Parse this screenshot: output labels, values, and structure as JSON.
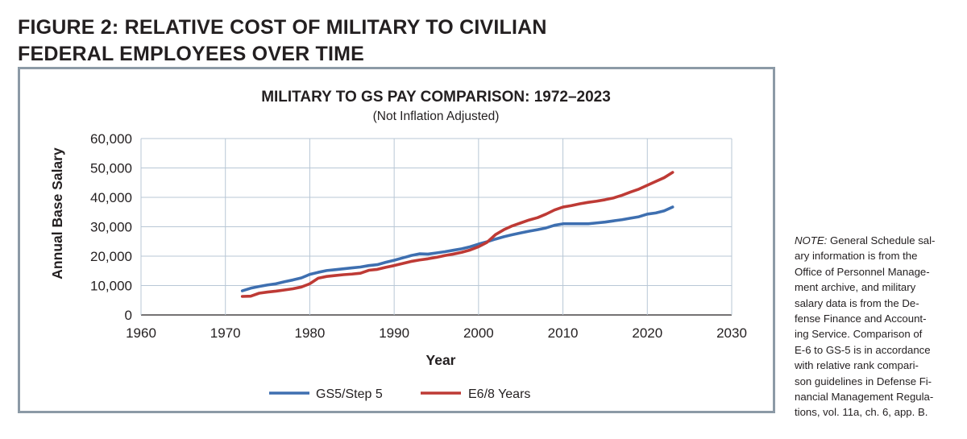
{
  "figure": {
    "title_lines": [
      "FIGURE 2: RELATIVE COST OF MILITARY TO CIVILIAN",
      "FEDERAL EMPLOYEES OVER TIME"
    ]
  },
  "note": {
    "label": "NOTE:",
    "lines": [
      " General Schedule sal-",
      "ary information is from the",
      "Office of Personnel Manage-",
      "ment archive, and military",
      "salary data is from the De-",
      "fense Finance and Account-",
      "ing Service. Comparison of",
      "E-6 to GS-5 is in accordance",
      "with relative rank compari-",
      "son guidelines in Defense Fi-",
      "nancial Management Regula-",
      "tions, vol. 11a, ch. 6, app. B."
    ]
  },
  "chart_data": {
    "type": "line",
    "title": "MILITARY TO GS PAY COMPARISON: 1972–2023",
    "subtitle": "(Not Inflation Adjusted)",
    "xlabel": "Year",
    "ylabel": "Annual Base Salary",
    "xlim": [
      1960,
      2030
    ],
    "ylim": [
      0,
      60000
    ],
    "xticks": [
      1960,
      1970,
      1980,
      1990,
      2000,
      2010,
      2020,
      2030
    ],
    "xtick_labels": [
      "1960",
      "1970",
      "1980",
      "1990",
      "2000",
      "2010",
      "2020",
      "2030"
    ],
    "yticks": [
      0,
      10000,
      20000,
      30000,
      40000,
      50000,
      60000
    ],
    "ytick_labels": [
      "0",
      "10,000",
      "20,000",
      "30,000",
      "40,000",
      "50,000",
      "60,000"
    ],
    "grid": true,
    "legend_position": "bottom-center",
    "series": [
      {
        "name": "GS5/Step 5",
        "color": "#3e6fb0",
        "points": [
          [
            1972,
            8200
          ],
          [
            1973,
            9100
          ],
          [
            1974,
            9700
          ],
          [
            1975,
            10200
          ],
          [
            1976,
            10600
          ],
          [
            1977,
            11300
          ],
          [
            1978,
            11900
          ],
          [
            1979,
            12600
          ],
          [
            1980,
            13800
          ],
          [
            1981,
            14500
          ],
          [
            1982,
            15100
          ],
          [
            1983,
            15400
          ],
          [
            1984,
            15700
          ],
          [
            1985,
            16000
          ],
          [
            1986,
            16300
          ],
          [
            1987,
            16800
          ],
          [
            1988,
            17100
          ],
          [
            1989,
            17900
          ],
          [
            1990,
            18600
          ],
          [
            1991,
            19400
          ],
          [
            1992,
            20200
          ],
          [
            1993,
            20800
          ],
          [
            1994,
            20700
          ],
          [
            1995,
            21100
          ],
          [
            1996,
            21500
          ],
          [
            1997,
            22000
          ],
          [
            1998,
            22500
          ],
          [
            1999,
            23200
          ],
          [
            2000,
            24100
          ],
          [
            2001,
            24900
          ],
          [
            2002,
            25800
          ],
          [
            2003,
            26600
          ],
          [
            2004,
            27300
          ],
          [
            2005,
            27900
          ],
          [
            2006,
            28500
          ],
          [
            2007,
            29000
          ],
          [
            2008,
            29600
          ],
          [
            2009,
            30500
          ],
          [
            2010,
            31000
          ],
          [
            2011,
            31000
          ],
          [
            2012,
            31000
          ],
          [
            2013,
            31000
          ],
          [
            2014,
            31300
          ],
          [
            2015,
            31600
          ],
          [
            2016,
            32000
          ],
          [
            2017,
            32400
          ],
          [
            2018,
            32900
          ],
          [
            2019,
            33400
          ],
          [
            2020,
            34300
          ],
          [
            2021,
            34700
          ],
          [
            2022,
            35400
          ],
          [
            2023,
            36700
          ]
        ]
      },
      {
        "name": "E6/8 Years",
        "color": "#be3a35",
        "points": [
          [
            1972,
            6300
          ],
          [
            1973,
            6400
          ],
          [
            1974,
            7400
          ],
          [
            1975,
            7800
          ],
          [
            1976,
            8100
          ],
          [
            1977,
            8500
          ],
          [
            1978,
            8900
          ],
          [
            1979,
            9500
          ],
          [
            1980,
            10600
          ],
          [
            1981,
            12500
          ],
          [
            1982,
            13100
          ],
          [
            1983,
            13400
          ],
          [
            1984,
            13700
          ],
          [
            1985,
            13900
          ],
          [
            1986,
            14200
          ],
          [
            1987,
            15200
          ],
          [
            1988,
            15500
          ],
          [
            1989,
            16200
          ],
          [
            1990,
            16800
          ],
          [
            1991,
            17500
          ],
          [
            1992,
            18200
          ],
          [
            1993,
            18700
          ],
          [
            1994,
            19100
          ],
          [
            1995,
            19600
          ],
          [
            1996,
            20200
          ],
          [
            1997,
            20700
          ],
          [
            1998,
            21300
          ],
          [
            1999,
            22100
          ],
          [
            2000,
            23200
          ],
          [
            2001,
            24700
          ],
          [
            2002,
            27300
          ],
          [
            2003,
            29000
          ],
          [
            2004,
            30300
          ],
          [
            2005,
            31300
          ],
          [
            2006,
            32300
          ],
          [
            2007,
            33100
          ],
          [
            2008,
            34300
          ],
          [
            2009,
            35700
          ],
          [
            2010,
            36700
          ],
          [
            2011,
            37200
          ],
          [
            2012,
            37800
          ],
          [
            2013,
            38300
          ],
          [
            2014,
            38700
          ],
          [
            2015,
            39200
          ],
          [
            2016,
            39800
          ],
          [
            2017,
            40700
          ],
          [
            2018,
            41800
          ],
          [
            2019,
            42800
          ],
          [
            2020,
            44100
          ],
          [
            2021,
            45400
          ],
          [
            2022,
            46700
          ],
          [
            2023,
            48500
          ]
        ]
      }
    ]
  }
}
